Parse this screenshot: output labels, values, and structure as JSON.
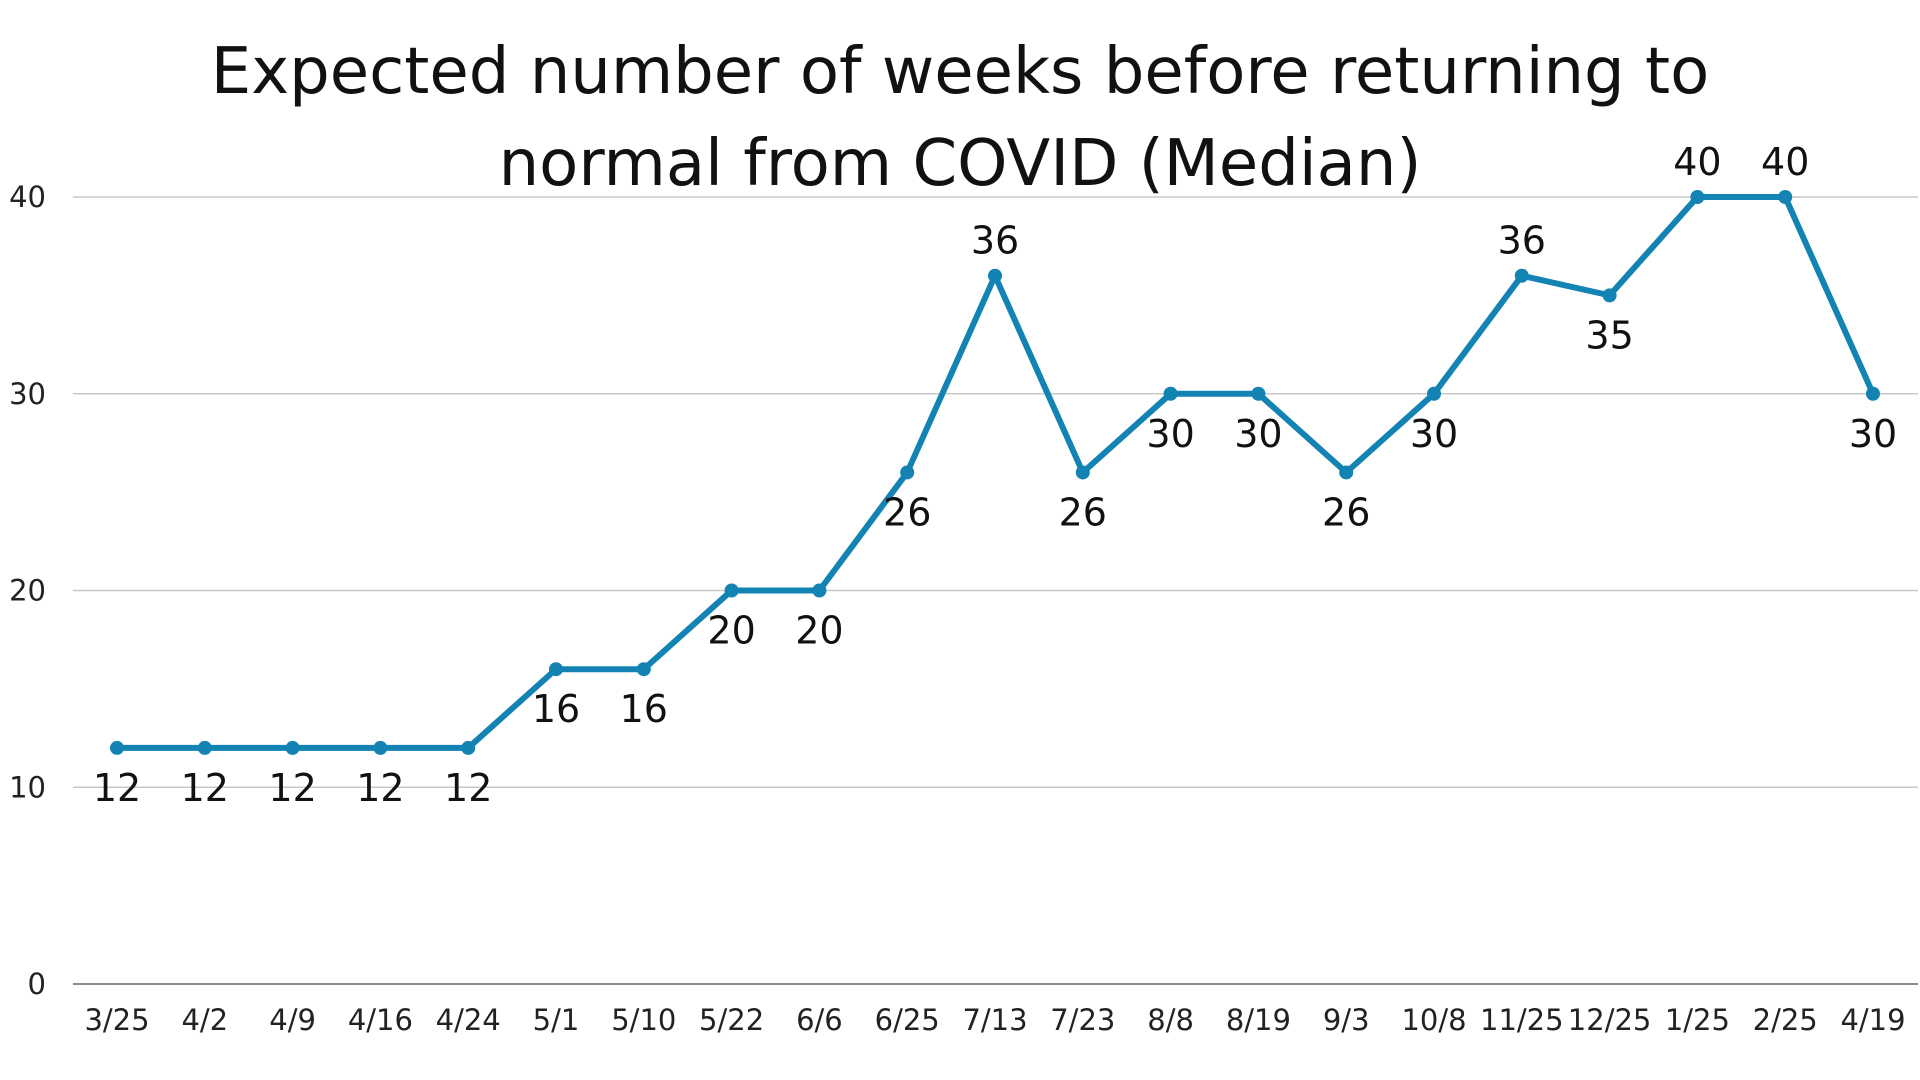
{
  "chart_data": {
    "type": "line",
    "title": "Expected number of weeks before returning to normal from COVID (Median)",
    "xlabel": "",
    "ylabel": "",
    "ylim": [
      0,
      40
    ],
    "yticks": [
      "0",
      "10",
      "20",
      "30",
      "40"
    ],
    "grid": true,
    "legend": "none",
    "categories": [
      "3/25",
      "4/2",
      "4/9",
      "4/16",
      "4/24",
      "5/1",
      "5/10",
      "5/22",
      "6/6",
      "6/25",
      "7/13",
      "7/23",
      "8/8",
      "8/19",
      "9/3",
      "10/8",
      "11/25",
      "12/25",
      "1/25",
      "2/25",
      "4/19"
    ],
    "series": [
      {
        "values": [
          12,
          12,
          12,
          12,
          12,
          16,
          16,
          20,
          20,
          26,
          36,
          26,
          30,
          30,
          26,
          30,
          36,
          35,
          40,
          40,
          30
        ],
        "label_pos": [
          "below",
          "below",
          "below",
          "below",
          "below",
          "below",
          "below",
          "below",
          "below",
          "below",
          "above",
          "below",
          "below",
          "below",
          "below",
          "below",
          "above",
          "below",
          "above",
          "above",
          "below"
        ]
      }
    ],
    "colors": {
      "line": "#1283b3",
      "grid": "#c8c8c8",
      "axis": "#8c8c8c"
    }
  }
}
